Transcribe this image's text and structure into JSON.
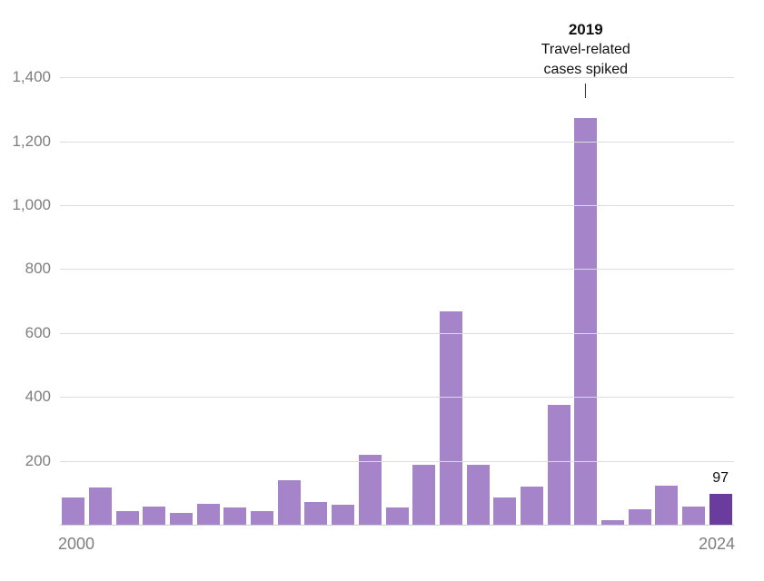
{
  "chart_data": {
    "type": "bar",
    "title": "",
    "x": [
      2000,
      2001,
      2002,
      2003,
      2004,
      2005,
      2006,
      2007,
      2008,
      2009,
      2010,
      2011,
      2012,
      2013,
      2014,
      2015,
      2016,
      2017,
      2018,
      2019,
      2020,
      2021,
      2022,
      2023,
      2024
    ],
    "values": [
      86,
      116,
      44,
      56,
      37,
      66,
      55,
      43,
      140,
      71,
      63,
      220,
      55,
      187,
      667,
      188,
      86,
      120,
      375,
      1274,
      13,
      49,
      121,
      58,
      97
    ],
    "ylim": [
      0,
      1400
    ],
    "grid": true,
    "yticks": {
      "values": [
        200,
        400,
        600,
        800,
        1000,
        1200,
        1400
      ],
      "labels": [
        "200",
        "400",
        "600",
        "800",
        "1,000",
        "1,200",
        "1,400"
      ]
    },
    "xtick_labels": [
      "2000",
      "2024"
    ],
    "highlight_index": 24,
    "value_labels": [
      {
        "year": 2024,
        "text": "97"
      }
    ],
    "annotation": {
      "year": 2019,
      "title": "2019",
      "lines": [
        "Travel-related",
        "cases spiked"
      ]
    },
    "colors": {
      "bar": "#a684c9",
      "highlight": "#6a3c9d",
      "grid": "#dcdcdc",
      "baseline": "#d2d2d2",
      "axis_text": "#7e7e7e",
      "annotation_text": "#111111",
      "pointer_line": "#333333"
    }
  }
}
